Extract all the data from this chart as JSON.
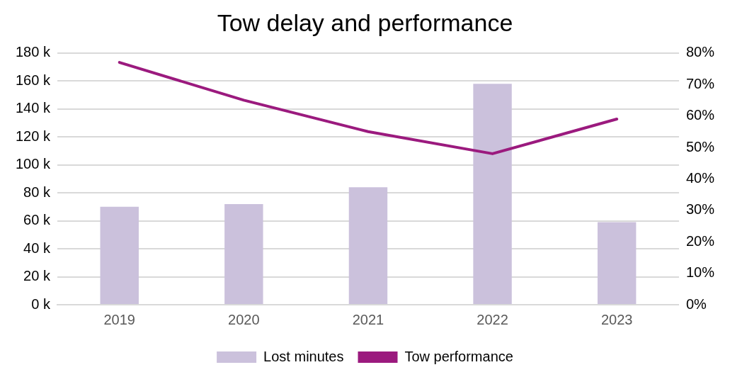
{
  "chart_data": {
    "type": "bar",
    "title": "Tow delay and performance",
    "categories": [
      "2019",
      "2020",
      "2021",
      "2022",
      "2023"
    ],
    "series": [
      {
        "name": "Lost minutes",
        "color": "#cbc1dc",
        "values": [
          70000,
          72000,
          84000,
          158000,
          59000
        ]
      },
      {
        "name": "Tow performance",
        "type": "line",
        "axis": "y2",
        "color": "#9b1a7e",
        "values": [
          77,
          65,
          55,
          48,
          59
        ]
      }
    ],
    "ylim": [
      0,
      180000
    ],
    "yticks": [
      {
        "value": 0,
        "label": "0 k"
      },
      {
        "value": 20000,
        "label": "20 k"
      },
      {
        "value": 40000,
        "label": "40 k"
      },
      {
        "value": 60000,
        "label": "60 k"
      },
      {
        "value": 80000,
        "label": "80 k"
      },
      {
        "value": 100000,
        "label": "100 k"
      },
      {
        "value": 120000,
        "label": "120 k"
      },
      {
        "value": 140000,
        "label": "140 k"
      },
      {
        "value": 160000,
        "label": "160 k"
      },
      {
        "value": 180000,
        "label": "180 k"
      }
    ],
    "y2lim": [
      0,
      80
    ],
    "y2ticks": [
      {
        "value": 0,
        "label": "0%"
      },
      {
        "value": 10,
        "label": "10%"
      },
      {
        "value": 20,
        "label": "20%"
      },
      {
        "value": 30,
        "label": "30%"
      },
      {
        "value": 40,
        "label": "40%"
      },
      {
        "value": 50,
        "label": "50%"
      },
      {
        "value": 60,
        "label": "60%"
      },
      {
        "value": 70,
        "label": "70%"
      },
      {
        "value": 80,
        "label": "80%"
      }
    ],
    "grid": "y",
    "legend": "bottom",
    "marker": "none"
  }
}
